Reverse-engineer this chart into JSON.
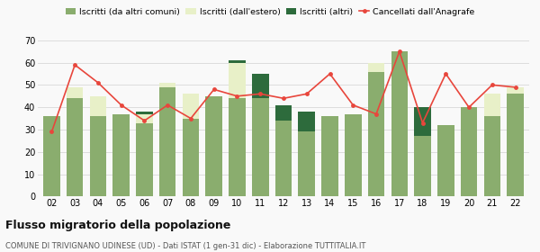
{
  "years": [
    "02",
    "03",
    "04",
    "05",
    "06",
    "07",
    "08",
    "09",
    "10",
    "11",
    "12",
    "13",
    "14",
    "15",
    "16",
    "17",
    "18",
    "19",
    "20",
    "21",
    "22"
  ],
  "iscritti_comuni": [
    36,
    44,
    36,
    37,
    33,
    49,
    35,
    45,
    44,
    44,
    34,
    29,
    36,
    37,
    56,
    65,
    27,
    32,
    40,
    36,
    46
  ],
  "iscritti_estero": [
    0,
    5,
    9,
    0,
    4,
    2,
    11,
    0,
    16,
    0,
    0,
    0,
    0,
    0,
    4,
    0,
    0,
    0,
    0,
    10,
    3
  ],
  "iscritti_altri": [
    0,
    0,
    0,
    0,
    1,
    0,
    0,
    0,
    1,
    11,
    7,
    9,
    0,
    0,
    0,
    0,
    13,
    0,
    0,
    0,
    0
  ],
  "cancellati": [
    29,
    59,
    51,
    41,
    34,
    41,
    35,
    48,
    45,
    46,
    44,
    46,
    55,
    41,
    37,
    65,
    33,
    55,
    40,
    50,
    49
  ],
  "color_comuni": "#8aad6e",
  "color_estero": "#e8f0c8",
  "color_altri": "#2d6b3c",
  "color_cancellati": "#e8463c",
  "legend_labels": [
    "Iscritti (da altri comuni)",
    "Iscritti (dall'estero)",
    "Iscritti (altri)",
    "Cancellati dall'Anagrafe"
  ],
  "title": "Flusso migratorio della popolazione",
  "subtitle": "COMUNE DI TRIVIGNANO UDINESE (UD) - Dati ISTAT (1 gen-31 dic) - Elaborazione TUTTITALIA.IT",
  "ylim": [
    0,
    70
  ],
  "yticks": [
    0,
    10,
    20,
    30,
    40,
    50,
    60,
    70
  ],
  "grid_color": "#dddddd",
  "background_color": "#f9f9f9"
}
